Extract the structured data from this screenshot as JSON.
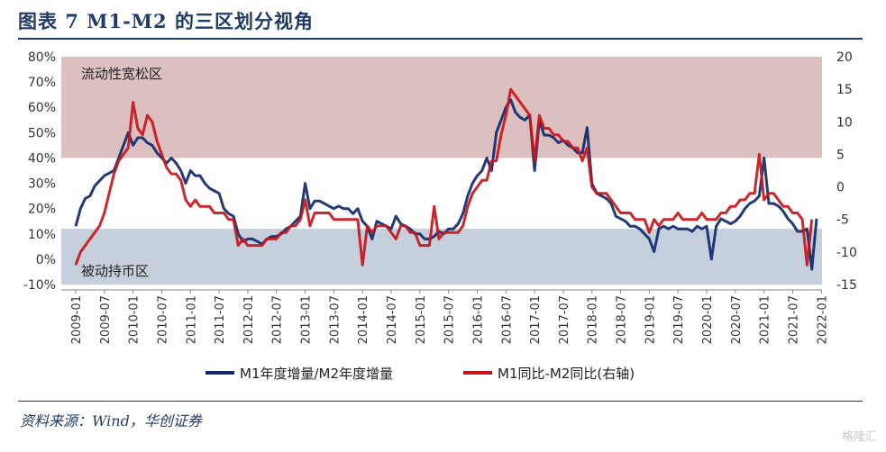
{
  "title": "图表 7  M1-M2 的三区划分视角",
  "source": "资料来源：Wind，华创证券",
  "watermark": "格隆汇",
  "chart_data": {
    "type": "line",
    "x_labels": [
      "2009-01",
      "2009-07",
      "2010-01",
      "2010-07",
      "2011-01",
      "2011-07",
      "2012-01",
      "2012-07",
      "2013-01",
      "2013-07",
      "2014-01",
      "2014-07",
      "2015-01",
      "2015-07",
      "2016-01",
      "2016-07",
      "2017-01",
      "2017-07",
      "2018-01",
      "2018-07",
      "2019-01",
      "2019-07",
      "2020-01",
      "2020-07",
      "2021-01",
      "2021-07",
      "2022-01"
    ],
    "start": "2009-01",
    "left_axis": {
      "ticks": [
        "80%",
        "70%",
        "60%",
        "50%",
        "40%",
        "30%",
        "20%",
        "10%",
        "0%",
        "-10%"
      ],
      "min": -10,
      "max": 80
    },
    "right_axis": {
      "ticks": [
        "20",
        "15",
        "10",
        "5",
        "0",
        "-5",
        "-10",
        "-15"
      ],
      "min": -15,
      "max": 20
    },
    "zones": [
      {
        "label": "流动性宽松区",
        "from": 40,
        "to": 80,
        "color": "#d6b5b5"
      },
      {
        "label": "被动持币区",
        "from": -10,
        "to": 12,
        "color": "#bcc7d6"
      }
    ],
    "series": [
      {
        "name": "M1年度增量/M2年度增量",
        "axis": "left",
        "color": "#0f2a6b",
        "values": [
          13,
          20,
          24,
          25,
          29,
          31,
          33,
          34,
          35,
          40,
          45,
          50,
          45,
          48,
          48,
          46,
          45,
          42,
          40,
          38,
          40,
          38,
          35,
          30,
          35,
          33,
          33,
          30,
          28,
          27,
          26,
          20,
          18,
          17,
          10,
          7,
          8,
          8,
          7,
          6,
          8,
          9,
          9,
          10,
          12,
          13,
          15,
          17,
          30,
          20,
          23,
          23,
          22,
          21,
          20,
          21,
          20,
          20,
          18,
          20,
          15,
          13,
          8,
          15,
          14,
          13,
          12,
          17,
          14,
          13,
          12,
          10,
          10,
          8,
          8,
          9,
          11,
          10,
          12,
          12,
          14,
          18,
          25,
          30,
          33,
          35,
          40,
          35,
          50,
          55,
          60,
          63,
          58,
          56,
          55,
          57,
          35,
          55,
          49,
          49,
          48,
          46,
          47,
          45,
          44,
          42,
          42,
          52,
          30,
          26,
          25,
          24,
          22,
          17,
          16,
          15,
          13,
          13,
          12,
          10,
          8,
          3,
          12,
          13,
          12,
          13,
          12,
          12,
          12,
          11,
          13,
          12,
          13,
          0,
          13,
          16,
          15,
          14,
          15,
          17,
          20,
          22,
          23,
          25,
          40,
          22,
          22,
          21,
          19,
          16,
          14,
          11,
          11,
          12,
          -4,
          16
        ]
      },
      {
        "name": "M1同比-M2同比(右轴)",
        "axis": "right",
        "color": "#c8151b",
        "values": [
          -12,
          -10,
          -9,
          -8,
          -7,
          -6,
          -4,
          -1,
          2,
          4,
          5,
          6,
          13,
          9,
          8,
          11,
          10,
          7,
          5,
          3,
          2,
          2,
          1,
          -2,
          -3,
          -2,
          -3,
          -3,
          -3,
          -4,
          -4,
          -4,
          -5,
          -5,
          -9,
          -8,
          -9,
          -9,
          -9,
          -9,
          -8,
          -8,
          -8,
          -7,
          -7,
          -6,
          -6,
          -5,
          -2,
          -6,
          -4,
          -4,
          -4,
          -4,
          -5,
          -5,
          -5,
          -5,
          -5,
          -5,
          -12,
          -6,
          -7,
          -6,
          -6,
          -6,
          -7,
          -8,
          -6,
          -6,
          -7,
          -7,
          -9,
          -9,
          -9,
          -3,
          -8,
          -7,
          -7,
          -7,
          -7,
          -6,
          -3,
          -1,
          0,
          1,
          1,
          4,
          4,
          8,
          11,
          15,
          14,
          13,
          12,
          11,
          4,
          11,
          9,
          9,
          8,
          8,
          7,
          7,
          6,
          6,
          4,
          6,
          0,
          -1,
          -1,
          -1,
          -2,
          -3,
          -4,
          -4,
          -4,
          -5,
          -5,
          -5,
          -7,
          -5,
          -6,
          -5,
          -5,
          -5,
          -4,
          -5,
          -5,
          -5,
          -5,
          -4,
          -5,
          -5,
          -5,
          -4,
          -4,
          -3,
          -3,
          -2,
          -2,
          -1,
          -1,
          5,
          -2,
          -1,
          -1,
          -2,
          -3,
          -3,
          -4,
          -4,
          -5,
          -12,
          -5
        ]
      }
    ]
  }
}
